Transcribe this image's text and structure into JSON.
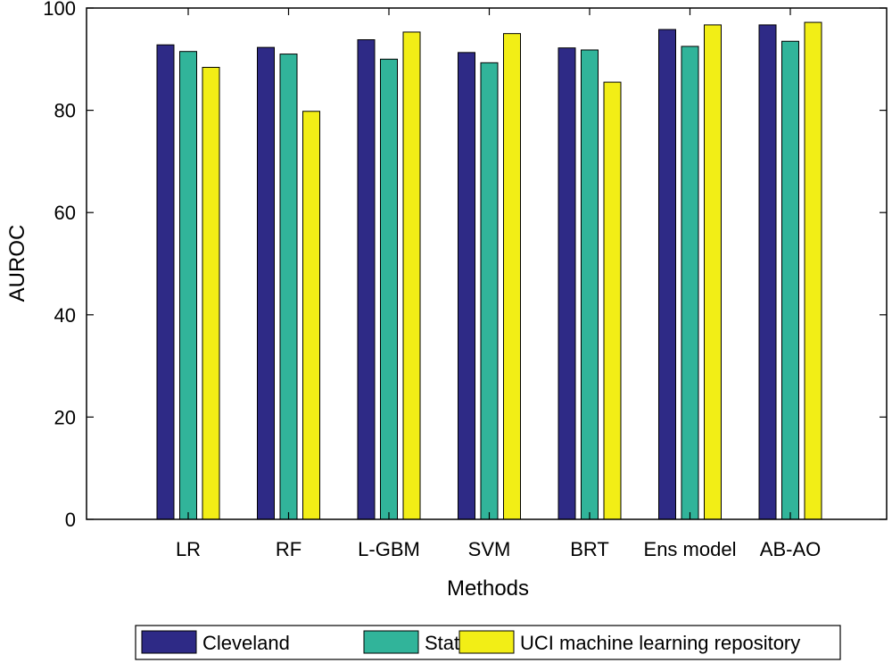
{
  "chart_data": {
    "type": "bar",
    "title": "",
    "xlabel": "Methods",
    "ylabel": "AUROC",
    "ylim": [
      0,
      100
    ],
    "yticks": [
      0,
      20,
      40,
      60,
      80,
      100
    ],
    "categories": [
      "LR",
      "RF",
      "L-GBM",
      "SVM",
      "BRT",
      "Ens model",
      "AB-AO"
    ],
    "series": [
      {
        "name": "Cleveland",
        "color": "#2e2a86",
        "values": [
          92.8,
          92.3,
          93.8,
          91.3,
          92.2,
          95.8,
          96.7
        ]
      },
      {
        "name": "Statlog",
        "color": "#31b49a",
        "values": [
          91.5,
          91.0,
          90.0,
          89.3,
          91.8,
          92.5,
          93.5
        ]
      },
      {
        "name": "UCI machine learning repository",
        "color": "#f2ee16",
        "values": [
          88.4,
          79.8,
          95.3,
          95.0,
          85.5,
          96.7,
          97.2
        ]
      }
    ],
    "grid": false,
    "legend_position": "bottom"
  }
}
